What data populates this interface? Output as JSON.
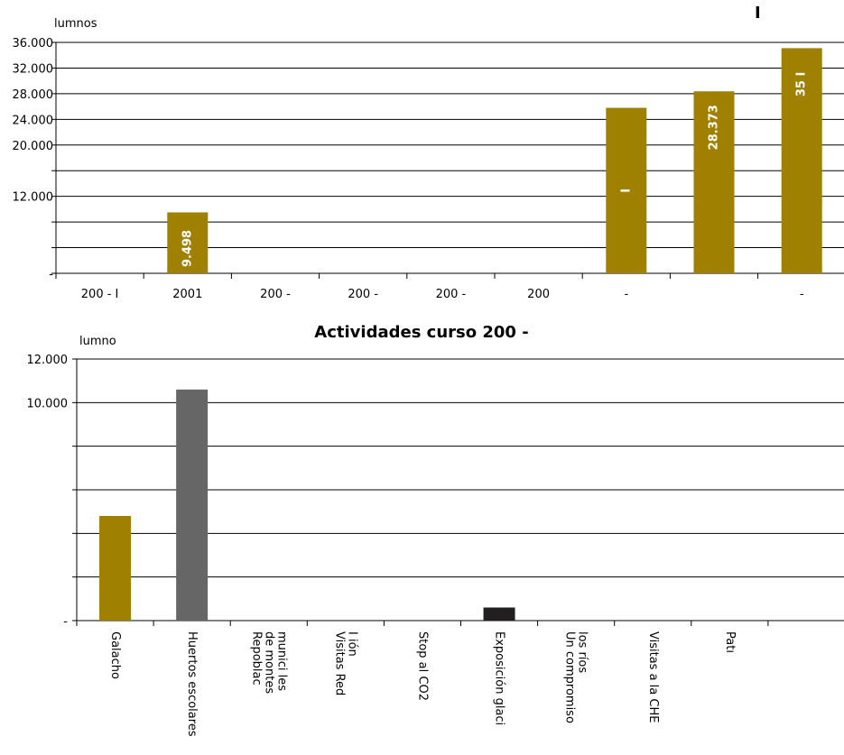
{
  "chart_data": [
    {
      "type": "bar",
      "ylabel": "lumnos",
      "corner_mark": "I",
      "ylim": [
        0,
        36000
      ],
      "y_tick_values": [
        0,
        4000,
        8000,
        12000,
        16000,
        20000,
        24000,
        28000,
        32000,
        36000
      ],
      "y_tick_labels": [
        "-",
        "",
        "",
        "12.000",
        "",
        "20.000",
        "24.000",
        "28.000",
        "32.000",
        "36.000"
      ],
      "categories": [
        "200 - I",
        "2001",
        "200 -",
        "200 -",
        "200 -",
        "200",
        "-",
        "",
        "-"
      ],
      "values": [
        0,
        9498,
        0,
        0,
        0,
        0,
        25800,
        28373,
        35100
      ],
      "data_labels": [
        "",
        "9.498",
        "",
        "",
        "",
        "",
        "I",
        "28.373",
        "35 I"
      ],
      "bar_color": "#a08000",
      "grid": true
    },
    {
      "type": "bar",
      "title": "Actividades curso 200  -",
      "ylabel": "lumno",
      "ylim": [
        0,
        12000
      ],
      "y_tick_values": [
        0,
        2000,
        4000,
        6000,
        8000,
        10000,
        12000
      ],
      "y_tick_labels": [
        "-",
        "",
        "",
        "",
        "",
        "10.000",
        "12.000"
      ],
      "categories": [
        [
          "Galacho"
        ],
        [
          "Huertos escolares"
        ],
        [
          "Repoblac",
          "de montes",
          "munici   les"
        ],
        [
          "Visitas Red",
          "   I        ión"
        ],
        [
          "Stop al CO2"
        ],
        [
          "Exposición glaci"
        ],
        [
          "Un compromiso",
          "los ríos"
        ],
        [
          "Visitas a la CHE"
        ],
        [
          "Patı"
        ]
      ],
      "values": [
        4800,
        10600,
        0,
        0,
        0,
        600,
        0,
        0,
        0
      ],
      "bar_colors": [
        "#a08000",
        "#666666",
        "#a08000",
        "#a08000",
        "#a08000",
        "#231f20",
        "#a08000",
        "#a08000",
        "#a08000"
      ],
      "grid": true
    }
  ]
}
